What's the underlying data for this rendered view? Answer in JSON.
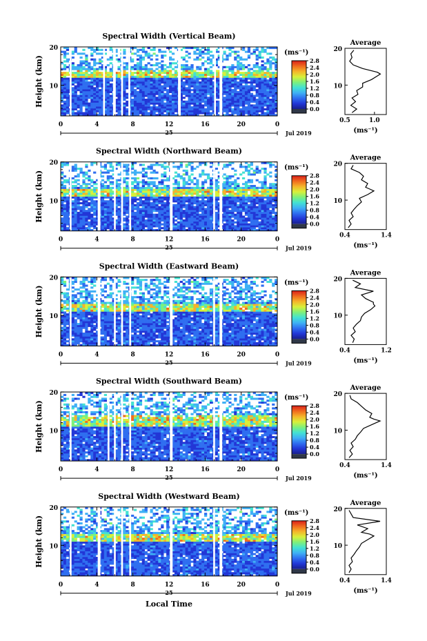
{
  "figure": {
    "x_caption": "Local Time",
    "date_label": "Jul 2019",
    "day_label": "25",
    "colorbar_unit": "(ms⁻¹)",
    "colorbar_ticks": [
      "0.0",
      "0.4",
      "0.8",
      "1.2",
      "1.6",
      "2.0",
      "2.4",
      "2.8"
    ],
    "colors": {
      "scale": [
        "#1a1f8c",
        "#2236d6",
        "#2f6ef0",
        "#3fb0f5",
        "#43e2d2",
        "#7ff07a",
        "#d8f03a",
        "#f5b42a",
        "#f06a1e",
        "#d9201a"
      ],
      "bottom_swatch": "#303848"
    }
  },
  "chart_data": [
    {
      "type": "heatmap",
      "title": "Spectral Width (Vertical Beam)",
      "xlabel": "",
      "ylabel": "Height (km)",
      "x_ticks": [
        "0",
        "4",
        "8",
        "12",
        "16",
        "20",
        "0"
      ],
      "y_ticks": [
        "20",
        "10"
      ],
      "xlim": [
        0,
        24
      ],
      "ylim": [
        2,
        20
      ],
      "gaps_hours": [
        [
          1.0,
          1.2
        ],
        [
          4.7,
          4.9
        ],
        [
          5.8,
          6.1
        ],
        [
          6.7,
          6.9
        ],
        [
          7.5,
          7.7
        ],
        [
          13.0,
          13.3
        ],
        [
          17.0,
          17.2
        ],
        [
          17.6,
          17.9
        ]
      ],
      "enhanced_layer_km": [
        12,
        14
      ],
      "colorbar_range": [
        0.0,
        2.8
      ],
      "average_profile": {
        "title": "Average",
        "xlabel": "(ms⁻¹)",
        "x_ticks": [
          "0.5",
          "1.0"
        ],
        "xlim": [
          0.5,
          1.2
        ],
        "y_ticks": [
          "20",
          "10"
        ],
        "ylim": [
          2,
          20
        ],
        "height_km": [
          2.5,
          3.5,
          4.5,
          5.5,
          6.5,
          7.5,
          8.5,
          9.5,
          10.5,
          11.5,
          12.5,
          13.0,
          13.5,
          14.5,
          15.5,
          16.5,
          17.5,
          18.5,
          19.5
        ],
        "value": [
          0.62,
          0.7,
          0.6,
          0.68,
          0.62,
          0.72,
          0.7,
          0.8,
          0.8,
          0.95,
          1.05,
          1.1,
          1.05,
          0.8,
          0.64,
          0.58,
          0.62,
          0.6,
          0.65
        ]
      }
    },
    {
      "type": "heatmap",
      "title": "Spectral Width (Northward Beam)",
      "xlabel": "",
      "ylabel": "Height (km)",
      "x_ticks": [
        "0",
        "4",
        "8",
        "12",
        "16",
        "20",
        "0"
      ],
      "y_ticks": [
        "20",
        "10"
      ],
      "xlim": [
        0,
        24
      ],
      "ylim": [
        2,
        20
      ],
      "gaps_hours": [
        [
          1.0,
          1.2
        ],
        [
          4.1,
          4.4
        ],
        [
          5.9,
          6.1
        ],
        [
          6.7,
          6.9
        ],
        [
          7.6,
          7.8
        ],
        [
          12.1,
          12.4
        ],
        [
          16.9,
          17.1
        ],
        [
          17.6,
          17.9
        ]
      ],
      "enhanced_layer_km": [
        11,
        13
      ],
      "colorbar_range": [
        0.0,
        2.8
      ],
      "average_profile": {
        "title": "Average",
        "xlabel": "(ms⁻¹)",
        "x_ticks": [
          "0.4",
          "1.4"
        ],
        "xlim": [
          0.4,
          1.4
        ],
        "y_ticks": [
          "20",
          "10"
        ],
        "ylim": [
          2,
          20
        ],
        "height_km": [
          2.5,
          3.5,
          4.5,
          5.5,
          6.5,
          7.5,
          8.5,
          9.5,
          10.5,
          11.5,
          12.5,
          13.0,
          13.5,
          14.5,
          15.5,
          16.5,
          17.5,
          18.5,
          19.5
        ],
        "value": [
          0.48,
          0.55,
          0.5,
          0.6,
          0.55,
          0.62,
          0.7,
          0.8,
          0.75,
          0.95,
          1.1,
          1.0,
          0.9,
          0.95,
          0.8,
          0.85,
          0.75,
          0.55,
          0.6
        ]
      }
    },
    {
      "type": "heatmap",
      "title": "Spectral Width (Eastward Beam)",
      "xlabel": "",
      "ylabel": "Height (km)",
      "x_ticks": [
        "0",
        "4",
        "8",
        "12",
        "16",
        "20",
        "0"
      ],
      "y_ticks": [
        "20",
        "10"
      ],
      "xlim": [
        0,
        24
      ],
      "ylim": [
        2,
        20
      ],
      "gaps_hours": [
        [
          1.0,
          1.2
        ],
        [
          4.1,
          4.4
        ],
        [
          5.9,
          6.1
        ],
        [
          6.7,
          6.9
        ],
        [
          7.6,
          7.8
        ],
        [
          12.1,
          12.4
        ],
        [
          16.9,
          17.1
        ],
        [
          17.6,
          17.9
        ]
      ],
      "enhanced_layer_km": [
        11,
        13
      ],
      "colorbar_range": [
        0.0,
        2.8
      ],
      "average_profile": {
        "title": "Average",
        "xlabel": "(ms⁻¹)",
        "x_ticks": [
          "0.4",
          "1.2"
        ],
        "xlim": [
          0.4,
          1.2
        ],
        "y_ticks": [
          "20",
          "10"
        ],
        "ylim": [
          2,
          20
        ],
        "height_km": [
          2.5,
          3.5,
          4.5,
          5.5,
          6.5,
          7.5,
          8.5,
          9.5,
          10.5,
          11.5,
          12.5,
          13.0,
          13.5,
          14.5,
          15.5,
          16.5,
          17.5,
          18.5,
          19.5
        ],
        "value": [
          0.55,
          0.58,
          0.52,
          0.6,
          0.56,
          0.62,
          0.7,
          0.72,
          0.78,
          0.9,
          0.98,
          0.95,
          0.95,
          0.8,
          0.72,
          0.95,
          0.6,
          0.7,
          0.55
        ]
      }
    },
    {
      "type": "heatmap",
      "title": "Spectral Width (Southward Beam)",
      "xlabel": "",
      "ylabel": "Height (km)",
      "x_ticks": [
        "0",
        "4",
        "8",
        "12",
        "16",
        "20",
        "0"
      ],
      "y_ticks": [
        "20",
        "10"
      ],
      "xlim": [
        0,
        24
      ],
      "ylim": [
        2,
        20
      ],
      "gaps_hours": [
        [
          1.0,
          1.2
        ],
        [
          5.2,
          5.4
        ],
        [
          5.9,
          6.1
        ],
        [
          6.7,
          6.9
        ],
        [
          7.6,
          7.8
        ],
        [
          12.1,
          12.4
        ],
        [
          16.9,
          17.1
        ],
        [
          17.6,
          17.9
        ]
      ],
      "enhanced_layer_km": [
        11,
        14
      ],
      "colorbar_range": [
        0.0,
        2.8
      ],
      "average_profile": {
        "title": "Average",
        "xlabel": "(ms⁻¹)",
        "x_ticks": [
          "0.4",
          "1.4"
        ],
        "xlim": [
          0.4,
          1.4
        ],
        "y_ticks": [
          "20",
          "10"
        ],
        "ylim": [
          2,
          20
        ],
        "height_km": [
          2.5,
          3.5,
          4.5,
          5.5,
          6.5,
          7.5,
          8.5,
          9.5,
          10.5,
          11.5,
          12.5,
          13.0,
          13.5,
          14.5,
          15.5,
          16.5,
          17.5,
          18.5,
          19.5
        ],
        "value": [
          0.5,
          0.58,
          0.52,
          0.6,
          0.55,
          0.65,
          0.7,
          0.78,
          0.85,
          1.05,
          1.25,
          1.1,
          1.0,
          1.05,
          0.9,
          0.8,
          0.7,
          0.55,
          0.52
        ]
      }
    },
    {
      "type": "heatmap",
      "title": "Spectral Width (Westward Beam)",
      "xlabel": "",
      "ylabel": "Height (km)",
      "x_ticks": [
        "0",
        "4",
        "8",
        "12",
        "16",
        "20",
        "0"
      ],
      "y_ticks": [
        "20",
        "10"
      ],
      "xlim": [
        0,
        24
      ],
      "ylim": [
        2,
        20
      ],
      "gaps_hours": [
        [
          1.0,
          1.2
        ],
        [
          4.1,
          4.4
        ],
        [
          5.9,
          6.1
        ],
        [
          6.7,
          6.9
        ],
        [
          7.6,
          7.8
        ],
        [
          12.1,
          12.4
        ],
        [
          16.9,
          17.1
        ],
        [
          17.6,
          17.9
        ]
      ],
      "enhanced_layer_km": [
        11,
        13
      ],
      "colorbar_range": [
        0.0,
        2.8
      ],
      "average_profile": {
        "title": "Average",
        "xlabel": "(ms⁻¹)",
        "x_ticks": [
          "0.4",
          "1.4"
        ],
        "xlim": [
          0.4,
          1.4
        ],
        "y_ticks": [
          "20",
          "10"
        ],
        "ylim": [
          2,
          20
        ],
        "height_km": [
          2.5,
          3.5,
          4.5,
          5.5,
          6.5,
          7.5,
          8.5,
          9.5,
          10.5,
          11.5,
          12.5,
          13.0,
          13.5,
          14.5,
          15.5,
          16.5,
          17.5,
          18.5,
          19.5
        ],
        "value": [
          0.5,
          0.55,
          0.5,
          0.58,
          0.55,
          0.62,
          0.68,
          0.75,
          0.8,
          0.95,
          1.1,
          1.0,
          0.8,
          0.95,
          0.7,
          1.25,
          0.6,
          0.55,
          0.5
        ]
      }
    }
  ]
}
